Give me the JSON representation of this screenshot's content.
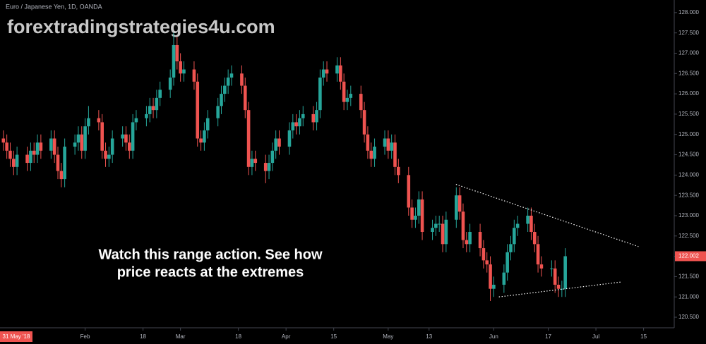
{
  "chart_data": {
    "type": "candlestick",
    "title": "Euro / Japanese Yen, 1D, OANDA",
    "watermark": "forextradingstrategies4u.com",
    "annotation": [
      "Watch this range action.  See how",
      "price reacts at the extremes"
    ],
    "cursor_label": "31 May '18",
    "up_color": "#26a69a",
    "down_color": "#ef5350",
    "x": [
      8,
      9,
      10,
      11,
      12,
      15,
      16,
      17,
      18,
      19,
      22,
      23,
      24,
      25,
      26,
      29,
      30,
      31,
      32,
      33,
      36,
      37,
      38,
      39,
      40,
      43,
      44,
      45,
      46,
      47,
      50,
      51,
      52,
      53,
      54,
      57,
      58,
      59,
      60,
      61,
      64,
      65,
      66,
      67,
      68,
      71,
      72,
      73,
      74,
      75,
      78,
      79,
      80,
      81,
      82,
      85,
      86,
      87,
      88,
      89,
      92,
      93,
      94,
      95,
      96,
      99,
      100,
      101,
      102,
      103,
      106,
      107,
      108,
      109,
      110,
      113,
      114,
      115,
      116,
      117,
      120,
      121,
      122,
      123,
      124,
      127,
      128,
      129,
      130,
      131,
      134,
      135,
      136,
      137,
      138,
      141,
      142,
      143,
      144,
      145,
      148,
      149,
      150,
      151,
      152,
      155,
      156,
      157,
      158,
      159,
      162,
      163,
      164,
      165,
      166,
      169,
      170,
      171,
      172,
      173
    ],
    "open": [
      124.9,
      124.8,
      124.6,
      124.4,
      124.2,
      124.5,
      124.3,
      124.6,
      124.5,
      124.8,
      124.6,
      124.9,
      124.5,
      124.1,
      123.9,
      124.7,
      124.8,
      125.0,
      124.6,
      125.2,
      125.4,
      125.3,
      124.6,
      124.4,
      124.5,
      124.9,
      125.0,
      124.8,
      124.6,
      125.3,
      125.4,
      125.5,
      125.7,
      125.6,
      125.9,
      126.1,
      126.4,
      127.2,
      126.8,
      126.5,
      126.6,
      126.3,
      124.9,
      124.8,
      125.1,
      125.4,
      125.7,
      126.0,
      126.2,
      126.4,
      126.5,
      126.2,
      125.6,
      124.2,
      124.4,
      124.3,
      124.1,
      124.3,
      124.6,
      124.9,
      124.7,
      125.1,
      125.3,
      125.2,
      125.4,
      125.5,
      125.3,
      125.6,
      126.4,
      126.6,
      126.5,
      126.7,
      126.3,
      125.8,
      125.9,
      126.0,
      125.6,
      125.0,
      124.6,
      124.4,
      124.7,
      124.9,
      124.6,
      124.8,
      124.2,
      124.0,
      123.2,
      122.9,
      123.0,
      123.4,
      122.6,
      122.7,
      122.8,
      122.8,
      122.3,
      122.9,
      123.5,
      123.1,
      122.4,
      122.3,
      122.6,
      122.2,
      121.9,
      121.8,
      121.2,
      121.3,
      121.6,
      122.1,
      122.3,
      122.7,
      122.8,
      123.0,
      122.6,
      122.3,
      121.8,
      121.7,
      121.7,
      121.3,
      121.2,
      121.2
    ],
    "high": [
      125.1,
      125.0,
      124.8,
      124.6,
      124.7,
      124.7,
      124.8,
      124.8,
      125.0,
      125.0,
      125.1,
      125.1,
      124.7,
      124.3,
      124.9,
      125.0,
      125.2,
      125.2,
      125.4,
      125.7,
      125.6,
      125.5,
      124.8,
      124.7,
      125.1,
      125.2,
      125.2,
      125.0,
      125.5,
      125.6,
      125.7,
      125.9,
      125.9,
      126.1,
      126.3,
      126.6,
      127.5,
      127.4,
      127.0,
      126.8,
      126.8,
      126.5,
      125.1,
      125.3,
      125.6,
      125.9,
      126.2,
      126.4,
      126.6,
      126.7,
      126.7,
      126.4,
      125.8,
      124.6,
      124.6,
      124.5,
      124.5,
      124.8,
      125.1,
      125.1,
      125.3,
      125.5,
      125.5,
      125.6,
      125.7,
      125.7,
      125.8,
      126.6,
      126.8,
      126.8,
      126.9,
      126.9,
      126.5,
      126.1,
      126.2,
      126.2,
      125.8,
      125.2,
      124.8,
      124.9,
      125.1,
      125.1,
      125.0,
      125.0,
      124.4,
      124.2,
      123.4,
      123.2,
      123.6,
      123.6,
      122.9,
      123.0,
      123.0,
      123.0,
      123.1,
      123.7,
      123.7,
      123.3,
      122.6,
      122.8,
      122.8,
      122.4,
      122.1,
      122.0,
      121.5,
      121.8,
      122.3,
      122.5,
      122.9,
      123.0,
      123.2,
      123.2,
      122.8,
      122.5,
      122.0,
      121.9,
      121.9,
      121.5,
      121.4,
      122.2
    ],
    "low": [
      124.6,
      124.4,
      124.2,
      124.0,
      124.0,
      124.1,
      124.1,
      124.3,
      124.3,
      124.4,
      124.4,
      124.3,
      123.9,
      123.7,
      123.7,
      124.5,
      124.6,
      124.4,
      124.4,
      125.0,
      125.1,
      124.4,
      124.2,
      124.2,
      124.3,
      124.7,
      124.6,
      124.4,
      124.4,
      125.1,
      125.2,
      125.3,
      125.4,
      125.4,
      125.7,
      125.9,
      126.2,
      126.6,
      126.3,
      126.3,
      126.1,
      124.7,
      124.6,
      124.6,
      124.9,
      125.2,
      125.5,
      125.8,
      126.0,
      126.2,
      126.0,
      125.4,
      124.0,
      124.0,
      124.1,
      123.8,
      123.9,
      124.1,
      124.4,
      124.5,
      124.5,
      124.9,
      125.0,
      125.0,
      125.2,
      125.1,
      125.1,
      125.4,
      126.2,
      126.3,
      126.3,
      126.1,
      125.6,
      125.6,
      125.7,
      125.4,
      124.8,
      124.4,
      124.2,
      124.2,
      124.5,
      124.4,
      124.4,
      124.0,
      123.8,
      123.0,
      122.7,
      122.7,
      122.8,
      122.4,
      122.4,
      122.5,
      122.6,
      122.1,
      122.1,
      122.7,
      122.9,
      122.2,
      122.1,
      122.1,
      122.0,
      121.7,
      121.6,
      120.9,
      121.0,
      121.1,
      121.4,
      121.9,
      122.1,
      122.5,
      122.6,
      122.4,
      122.1,
      121.6,
      121.5,
      121.5,
      121.1,
      121.0,
      121.0,
      121.0
    ],
    "close": [
      124.8,
      124.6,
      124.4,
      124.2,
      124.5,
      124.3,
      124.6,
      124.5,
      124.8,
      124.6,
      124.9,
      124.5,
      124.1,
      123.9,
      124.7,
      124.8,
      125.0,
      124.6,
      125.2,
      125.4,
      125.3,
      124.6,
      124.4,
      124.5,
      124.9,
      125.0,
      124.8,
      124.6,
      125.3,
      125.4,
      125.5,
      125.7,
      125.6,
      125.9,
      126.1,
      126.4,
      127.2,
      126.8,
      126.5,
      126.6,
      126.3,
      124.9,
      124.8,
      125.1,
      125.4,
      125.7,
      126.0,
      126.2,
      126.4,
      126.5,
      126.2,
      125.6,
      124.2,
      124.4,
      124.3,
      124.1,
      124.3,
      124.6,
      124.9,
      124.7,
      125.1,
      125.3,
      125.2,
      125.4,
      125.5,
      125.3,
      125.6,
      126.4,
      126.6,
      126.5,
      126.7,
      126.3,
      125.8,
      125.9,
      126.0,
      125.6,
      125.0,
      124.6,
      124.4,
      124.7,
      124.9,
      124.6,
      124.8,
      124.2,
      124.0,
      123.2,
      122.9,
      123.0,
      123.4,
      122.6,
      122.7,
      122.8,
      122.8,
      122.3,
      122.9,
      123.5,
      123.1,
      122.4,
      122.3,
      122.6,
      122.2,
      121.9,
      121.8,
      121.2,
      121.3,
      121.6,
      122.1,
      122.3,
      122.7,
      122.8,
      123.0,
      122.6,
      122.3,
      121.8,
      121.7,
      121.7,
      121.3,
      121.2,
      121.2,
      122.002
    ],
    "trendlines": [
      {
        "x": [
          140.9,
          194.5
        ],
        "y": [
          123.77,
          122.24
        ]
      },
      {
        "x": [
          153.5,
          189.7
        ],
        "y": [
          121.0,
          121.37
        ]
      }
    ],
    "xlim": [
      7,
      205
    ],
    "xticks": [
      {
        "value": 32,
        "label": "Feb"
      },
      {
        "value": 49,
        "label": "18"
      },
      {
        "value": 60,
        "label": "Mar"
      },
      {
        "value": 77,
        "label": "18"
      },
      {
        "value": 91,
        "label": "Apr"
      },
      {
        "value": 105,
        "label": "15"
      },
      {
        "value": 121,
        "label": "May"
      },
      {
        "value": 133,
        "label": "13"
      },
      {
        "value": 152,
        "label": "Jun"
      },
      {
        "value": 168,
        "label": "17"
      },
      {
        "value": 182,
        "label": "Jul"
      },
      {
        "value": 196,
        "label": "15"
      }
    ],
    "ylim": [
      120.24,
      128.31
    ],
    "yticks": [
      {
        "value": 120.5,
        "label": "120.500"
      },
      {
        "value": 121,
        "label": "121.000"
      },
      {
        "value": 121.5,
        "label": "121.500"
      },
      {
        "value": 122,
        "label": "122.000"
      },
      {
        "value": 122.5,
        "label": "122.500"
      },
      {
        "value": 123,
        "label": "123.000"
      },
      {
        "value": 123.5,
        "label": "123.500"
      },
      {
        "value": 124,
        "label": "124.000"
      },
      {
        "value": 124.5,
        "label": "124.500"
      },
      {
        "value": 125,
        "label": "125.000"
      },
      {
        "value": 125.5,
        "label": "125.500"
      },
      {
        "value": 126,
        "label": "126.000"
      },
      {
        "value": 126.5,
        "label": "126.500"
      },
      {
        "value": 127,
        "label": "127.000"
      },
      {
        "value": 127.5,
        "label": "127.500"
      },
      {
        "value": 128,
        "label": "128.000"
      }
    ]
  }
}
